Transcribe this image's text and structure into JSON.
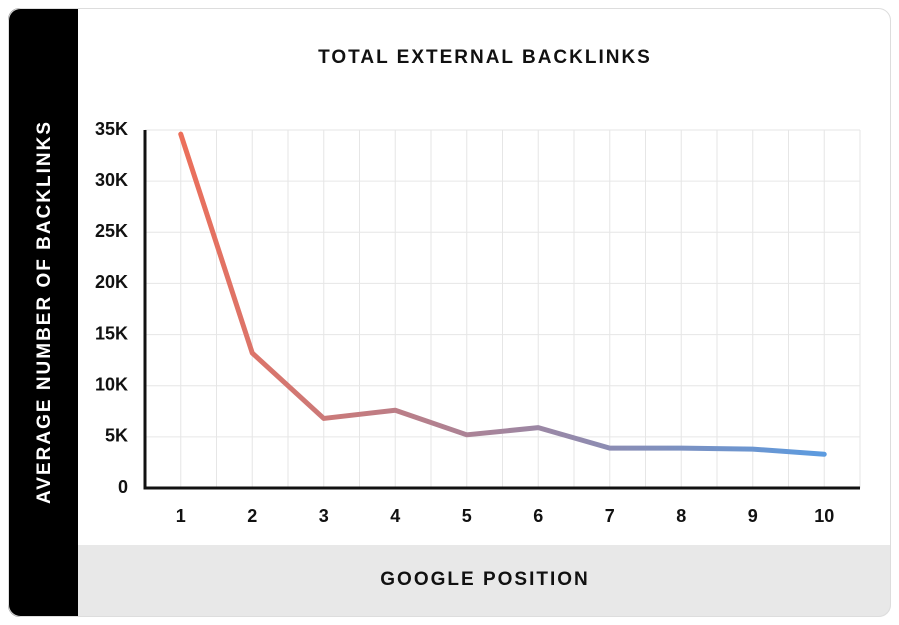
{
  "chart_data": {
    "type": "line",
    "title": "TOTAL EXTERNAL BACKLINKS",
    "x_label": "GOOGLE POSITION",
    "y_label": "AVERAGE NUMBER OF BACKLINKS",
    "categories": [
      "1",
      "2",
      "3",
      "4",
      "5",
      "6",
      "7",
      "8",
      "9",
      "10"
    ],
    "values": [
      34600,
      13200,
      6800,
      7600,
      5200,
      5900,
      3900,
      3900,
      3800,
      3300
    ],
    "gradient": [
      "#ec6f5a",
      "#5b9be0"
    ],
    "ylim": [
      0,
      35000
    ],
    "yticks": [
      0,
      {
        "value": 5000,
        "label": "5K"
      },
      {
        "value": 10000,
        "label": "10K"
      },
      {
        "value": 15000,
        "label": "15K"
      },
      {
        "value": 20000,
        "label": "20K"
      },
      {
        "value": 25000,
        "label": "25K"
      },
      {
        "value": 30000,
        "label": "30K"
      },
      {
        "value": 35000,
        "label": "35K"
      }
    ],
    "grid": true
  }
}
